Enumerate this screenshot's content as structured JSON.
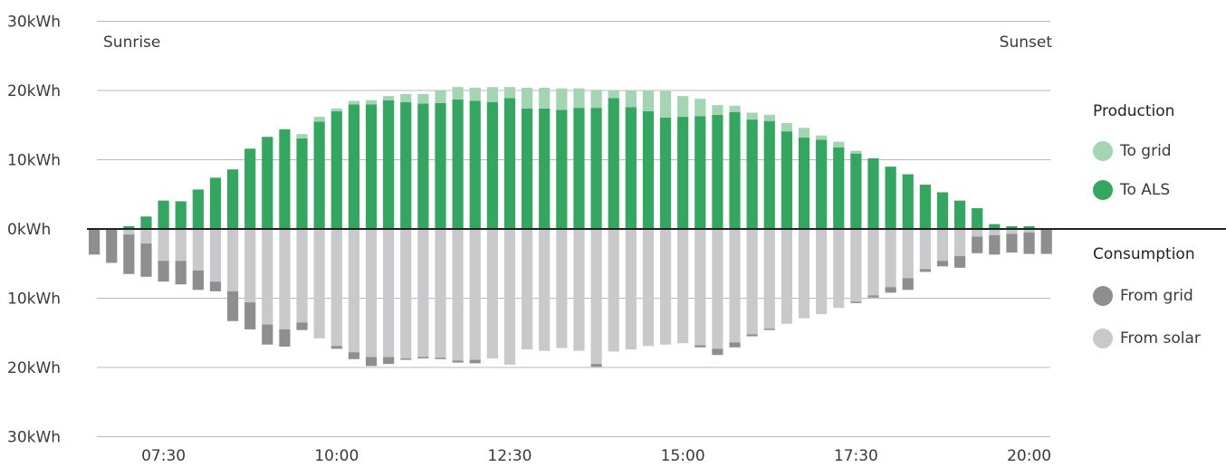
{
  "chart_data": {
    "type": "bar",
    "y_unit": "kWh",
    "ylim": [
      -30,
      30
    ],
    "y_ticks": [
      {
        "value": 30,
        "label": "30kWh"
      },
      {
        "value": 20,
        "label": "20kWh"
      },
      {
        "value": 10,
        "label": "10kWh"
      },
      {
        "value": 0,
        "label": "0kWh"
      },
      {
        "value": -10,
        "label": "10kWh"
      },
      {
        "value": -20,
        "label": "20kWh"
      },
      {
        "value": -30,
        "label": "30kWh"
      }
    ],
    "x_ticks": [
      {
        "index": 4,
        "label": "07:30"
      },
      {
        "index": 14,
        "label": "10:00"
      },
      {
        "index": 24,
        "label": "12:30"
      },
      {
        "index": 34,
        "label": "15:00"
      },
      {
        "index": 44,
        "label": "17:30"
      },
      {
        "index": 54,
        "label": "20:00"
      }
    ],
    "annotations": {
      "sunrise": "Sunrise",
      "sunset": "Sunset"
    },
    "grid": true,
    "legend_position": "right",
    "legend": {
      "production_title": "Production",
      "consumption_title": "Consumption",
      "items": [
        {
          "key": "to_grid",
          "label": "To grid",
          "color": "#a3d5b2"
        },
        {
          "key": "to_als",
          "label": "To ALS",
          "color": "#33a660"
        },
        {
          "key": "from_grid",
          "label": "From grid",
          "color": "#8e8e90"
        },
        {
          "key": "from_solar",
          "label": "From solar",
          "color": "#c9c9cb"
        }
      ]
    },
    "series": [
      {
        "name": "To ALS",
        "key": "to_als",
        "color": "#33a660",
        "values": [
          0,
          0,
          0.4,
          1.8,
          4.1,
          4.0,
          5.7,
          7.4,
          8.6,
          11.6,
          13.3,
          14.4,
          13.1,
          15.5,
          17.0,
          18.0,
          18.0,
          18.6,
          18.3,
          18.1,
          18.2,
          18.7,
          18.5,
          18.3,
          18.9,
          17.4,
          17.4,
          17.2,
          17.5,
          17.5,
          18.9,
          17.6,
          17.0,
          16.1,
          16.2,
          16.3,
          16.5,
          16.9,
          15.8,
          15.6,
          14.1,
          13.2,
          12.9,
          11.8,
          10.9,
          10.2,
          9.0,
          7.9,
          6.4,
          5.3,
          4.1,
          3.0,
          0.7,
          0.4,
          0.4,
          0
        ]
      },
      {
        "name": "To grid",
        "key": "to_grid",
        "color": "#a3d5b2",
        "values": [
          0,
          0,
          0,
          0,
          0,
          0,
          0,
          0,
          0,
          0,
          0,
          0,
          0.6,
          0.7,
          0.4,
          0.5,
          0.6,
          0.6,
          1.2,
          1.4,
          1.8,
          1.8,
          1.9,
          2.2,
          1.6,
          3.0,
          3.0,
          3.1,
          2.8,
          2.6,
          1.1,
          2.4,
          3.0,
          3.8,
          3.0,
          2.5,
          1.4,
          0.9,
          1.0,
          0.9,
          1.2,
          1.4,
          0.6,
          0.8,
          0.4,
          0,
          0,
          0,
          0,
          0,
          0,
          0,
          0,
          0,
          0,
          0
        ]
      },
      {
        "name": "From solar",
        "key": "from_solar",
        "color": "#c9c9cb",
        "values": [
          0,
          0,
          0.8,
          2.1,
          4.6,
          4.6,
          6.0,
          7.6,
          9.0,
          10.6,
          13.8,
          14.5,
          13.5,
          15.8,
          16.9,
          17.8,
          18.5,
          18.5,
          18.7,
          18.5,
          18.6,
          19.0,
          18.9,
          18.7,
          19.6,
          17.4,
          17.6,
          17.2,
          17.6,
          19.5,
          17.7,
          17.4,
          16.9,
          16.7,
          16.5,
          16.8,
          17.3,
          16.4,
          15.2,
          14.4,
          13.7,
          12.9,
          12.3,
          11.4,
          10.5,
          9.6,
          8.4,
          7.1,
          5.8,
          4.6,
          3.9,
          1.1,
          0.9,
          0.7,
          0.5,
          0
        ]
      },
      {
        "name": "From grid",
        "key": "from_grid",
        "color": "#8e8e90",
        "values": [
          3.7,
          4.9,
          5.7,
          4.8,
          3.0,
          3.4,
          2.8,
          1.4,
          4.3,
          3.9,
          2.9,
          2.5,
          1.1,
          0,
          0.4,
          1.0,
          1.3,
          1.0,
          0.2,
          0.2,
          0.2,
          0.3,
          0.5,
          0,
          0,
          0,
          0,
          0,
          0,
          0.4,
          0,
          0,
          0,
          0,
          0,
          0.3,
          0.9,
          0.7,
          0.3,
          0.2,
          0,
          0,
          0,
          0,
          0.2,
          0.3,
          0.8,
          1.7,
          0.4,
          0.8,
          1.7,
          2.4,
          2.8,
          2.7,
          3.1,
          3.6
        ]
      }
    ]
  }
}
